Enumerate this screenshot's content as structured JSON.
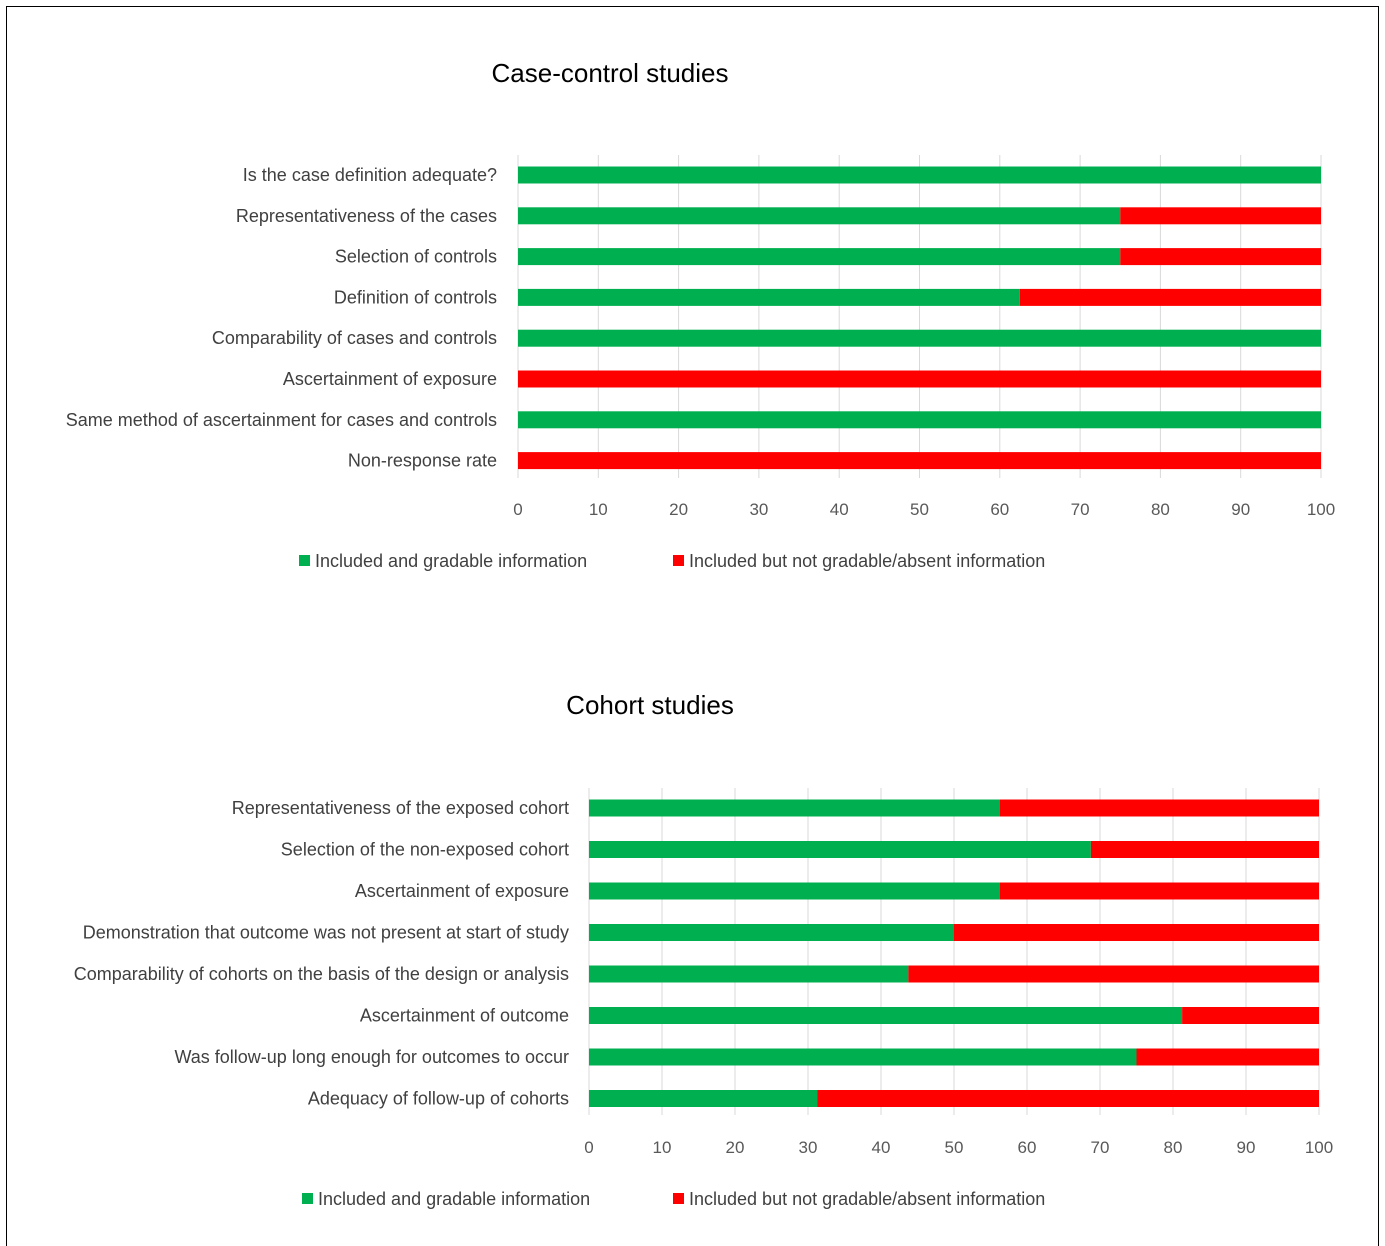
{
  "chart_data": [
    {
      "type": "bar",
      "stacked": true,
      "orientation": "horizontal",
      "title": "Case-control studies",
      "categories": [
        "Is the case definition adequate?",
        "Representativeness of the cases",
        "Selection of controls",
        "Definition of controls",
        "Comparability of cases and controls",
        "Ascertainment of exposure",
        "Same method of ascertainment for cases and controls",
        "Non-response rate"
      ],
      "series": [
        {
          "name": "Included and gradable information",
          "color": "#00B050",
          "values": [
            100,
            75,
            75,
            62.5,
            100,
            0,
            100,
            0
          ]
        },
        {
          "name": "Included but not gradable/absent information",
          "color": "#FF0000",
          "values": [
            0,
            25,
            25,
            37.5,
            0,
            100,
            0,
            100
          ]
        }
      ],
      "xlim": [
        0,
        100
      ],
      "xticks": [
        "0",
        "10",
        "20",
        "30",
        "40",
        "50",
        "60",
        "70",
        "80",
        "90",
        "100"
      ],
      "grid": true,
      "legend": "bottom"
    },
    {
      "type": "bar",
      "stacked": true,
      "orientation": "horizontal",
      "title": "Cohort studies",
      "categories": [
        "Representativeness of the exposed cohort",
        "Selection of the non-exposed cohort",
        "Ascertainment of exposure",
        "Demonstration that outcome was not present at start of study",
        "Comparability of cohorts on the basis of the design or analysis",
        "Ascertainment of outcome",
        "Was follow-up long enough for outcomes to occur",
        "Adequacy of follow-up of cohorts"
      ],
      "series": [
        {
          "name": "Included and gradable information",
          "color": "#00B050",
          "values": [
            56.25,
            68.75,
            56.25,
            50,
            43.75,
            81.25,
            75,
            31.25
          ]
        },
        {
          "name": "Included but not gradable/absent information",
          "color": "#FF0000",
          "values": [
            43.75,
            31.25,
            43.75,
            50,
            56.25,
            18.75,
            25,
            68.75
          ]
        }
      ],
      "xlim": [
        0,
        100
      ],
      "xticks": [
        "0",
        "10",
        "20",
        "30",
        "40",
        "50",
        "60",
        "70",
        "80",
        "90",
        "100"
      ],
      "grid": true,
      "legend": "bottom"
    }
  ]
}
